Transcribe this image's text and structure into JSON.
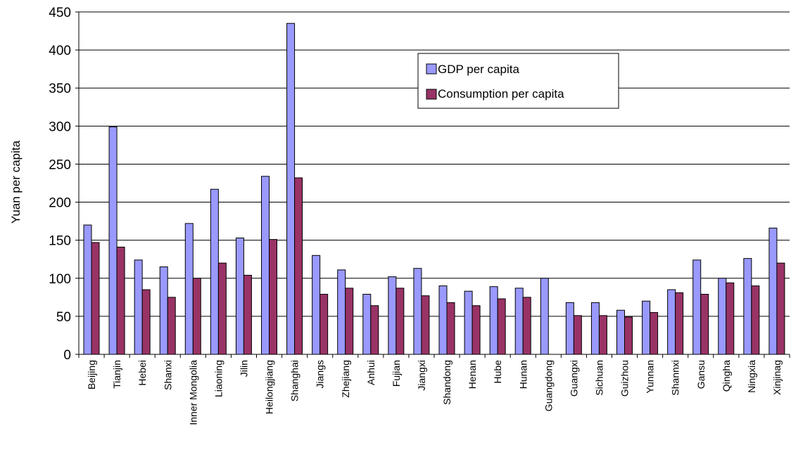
{
  "chart_data": {
    "type": "bar",
    "title": "",
    "xlabel": "",
    "ylabel": "Yuan per capita",
    "ylim": [
      0,
      450
    ],
    "yticks": [
      0,
      50,
      100,
      150,
      200,
      250,
      300,
      350,
      400,
      450
    ],
    "grid": true,
    "legend_position": "top-right",
    "categories": [
      "Beijing",
      "Tianjin",
      "Hebei",
      "Shanxi",
      "Inner Mongolia",
      "Liaoning",
      "Jilin",
      "Heilongjiang",
      "Shanghai",
      "Jiangs",
      "Zhejiang",
      "Anhui",
      "Fujian",
      "Jiangxi",
      "Shandong",
      "Henan",
      "Hube",
      "Hunan",
      "Guangdong",
      "Guangxi",
      "Sichuan",
      "Guizhou",
      "Yunnan",
      "Shannxi",
      "Gansu",
      "Qingha",
      "Ningxia",
      "Xinjinag"
    ],
    "series": [
      {
        "name": "GDP per capita",
        "color": "#9999ff",
        "values": [
          170,
          299,
          124,
          115,
          172,
          217,
          153,
          234,
          435,
          130,
          111,
          79,
          102,
          113,
          90,
          83,
          89,
          87,
          100,
          68,
          68,
          58,
          70,
          85,
          124,
          100,
          126,
          166
        ]
      },
      {
        "name": "Consumption per capita",
        "color": "#993366",
        "values": [
          147,
          141,
          85,
          75,
          100,
          120,
          104,
          151,
          232,
          79,
          87,
          64,
          87,
          77,
          68,
          64,
          73,
          75,
          null,
          51,
          51,
          49,
          55,
          81,
          79,
          94,
          90,
          120
        ]
      }
    ]
  }
}
